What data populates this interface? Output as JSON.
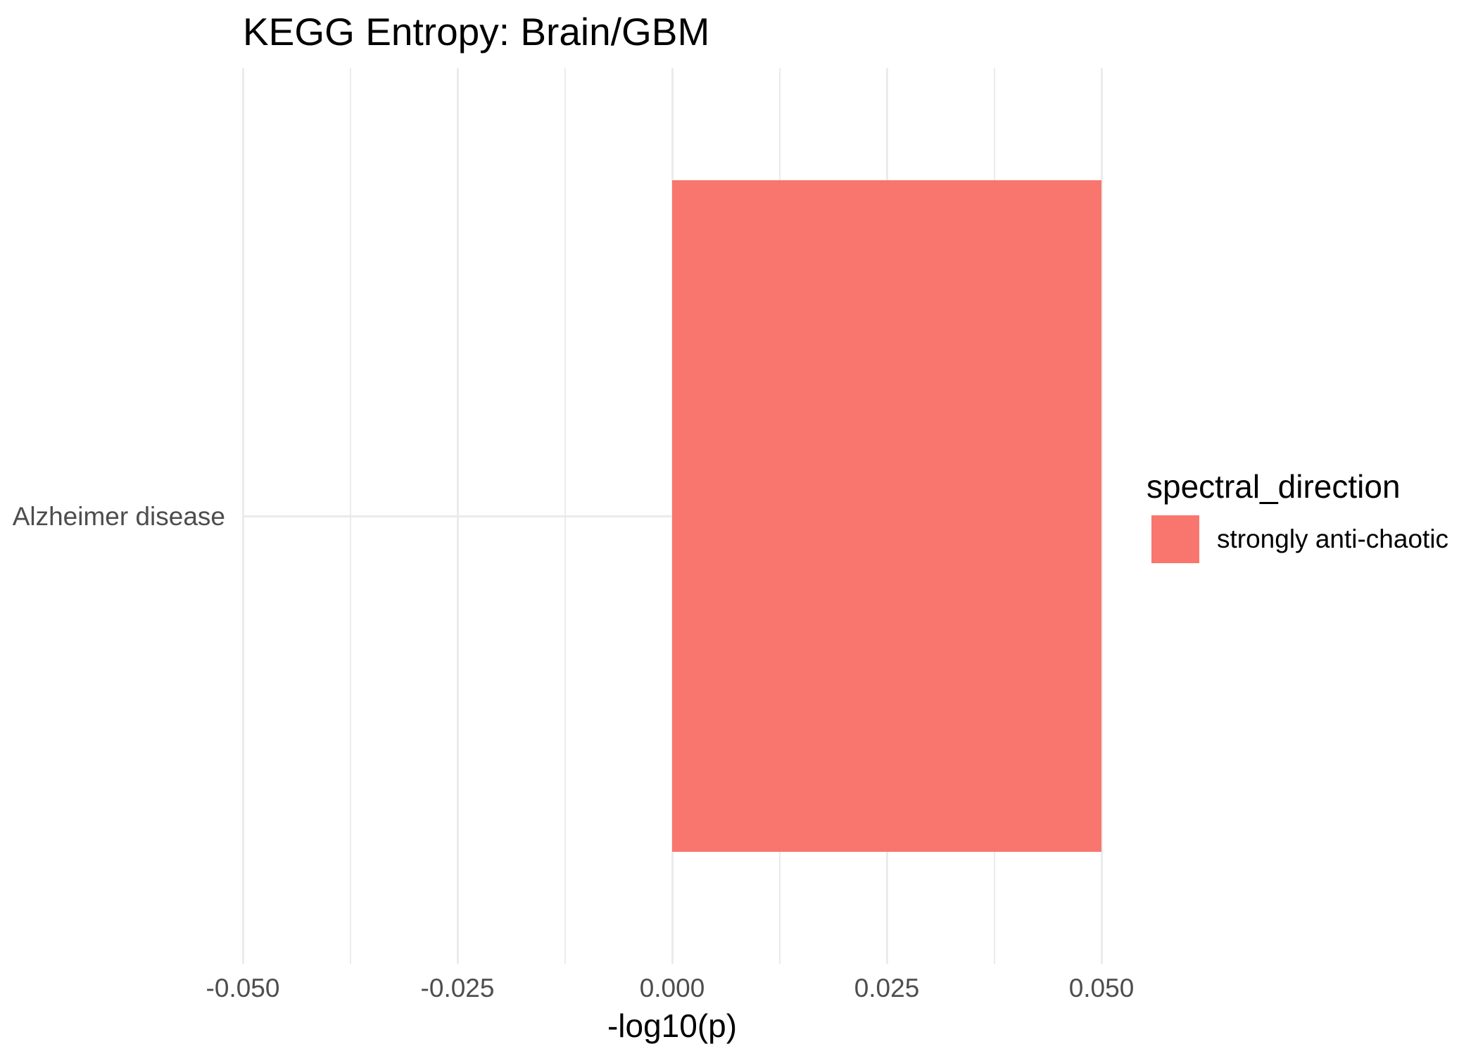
{
  "chart_data": {
    "type": "bar",
    "orientation": "horizontal",
    "title": "KEGG Entropy: Brain/GBM",
    "xlabel": "-log10(p)",
    "ylabel": "",
    "categories": [
      "Alzheimer disease"
    ],
    "series": [
      {
        "name": "strongly anti-chaotic",
        "values": [
          0.05
        ]
      }
    ],
    "xlim": [
      -0.05,
      0.05
    ],
    "x_ticks": [
      {
        "value": -0.05,
        "label": "-0.050"
      },
      {
        "value": -0.025,
        "label": "-0.025"
      },
      {
        "value": 0.0,
        "label": "0.000"
      },
      {
        "value": 0.025,
        "label": "0.025"
      },
      {
        "value": 0.05,
        "label": "0.050"
      }
    ],
    "grid": "major+minor, no axis lines, no ticks",
    "legend": {
      "title": "spectral_direction",
      "position": "right",
      "entries": [
        {
          "label": "strongly anti-chaotic",
          "color": "#F8766D"
        }
      ]
    },
    "colors": {
      "bar": "#F8766D",
      "grid": "#EBEBEB",
      "axis_text": "#4D4D4D",
      "text": "#000000",
      "background": "#FFFFFF"
    }
  }
}
